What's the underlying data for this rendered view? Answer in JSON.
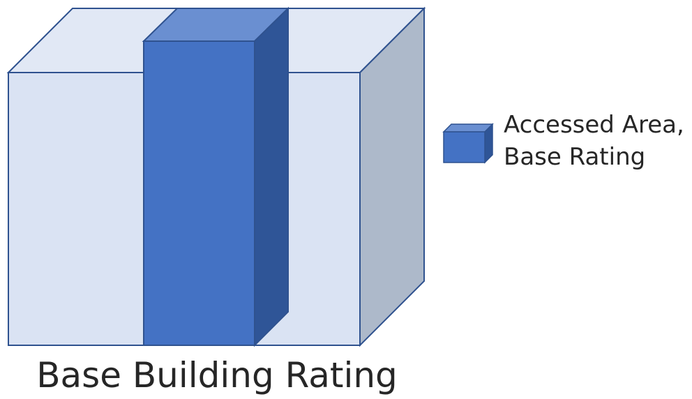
{
  "legend": {
    "line1": "Accessed Area,",
    "line2": "Base Rating"
  },
  "caption": "Base Building Rating",
  "colors": {
    "building_front": "#dae3f3",
    "building_top": "#e1e8f5",
    "building_side": "#adb9ca",
    "column_front": "#4472c4",
    "column_top": "#6a8fd1",
    "column_side": "#2f5597",
    "outline": "#2f528f",
    "text": "#262626"
  }
}
